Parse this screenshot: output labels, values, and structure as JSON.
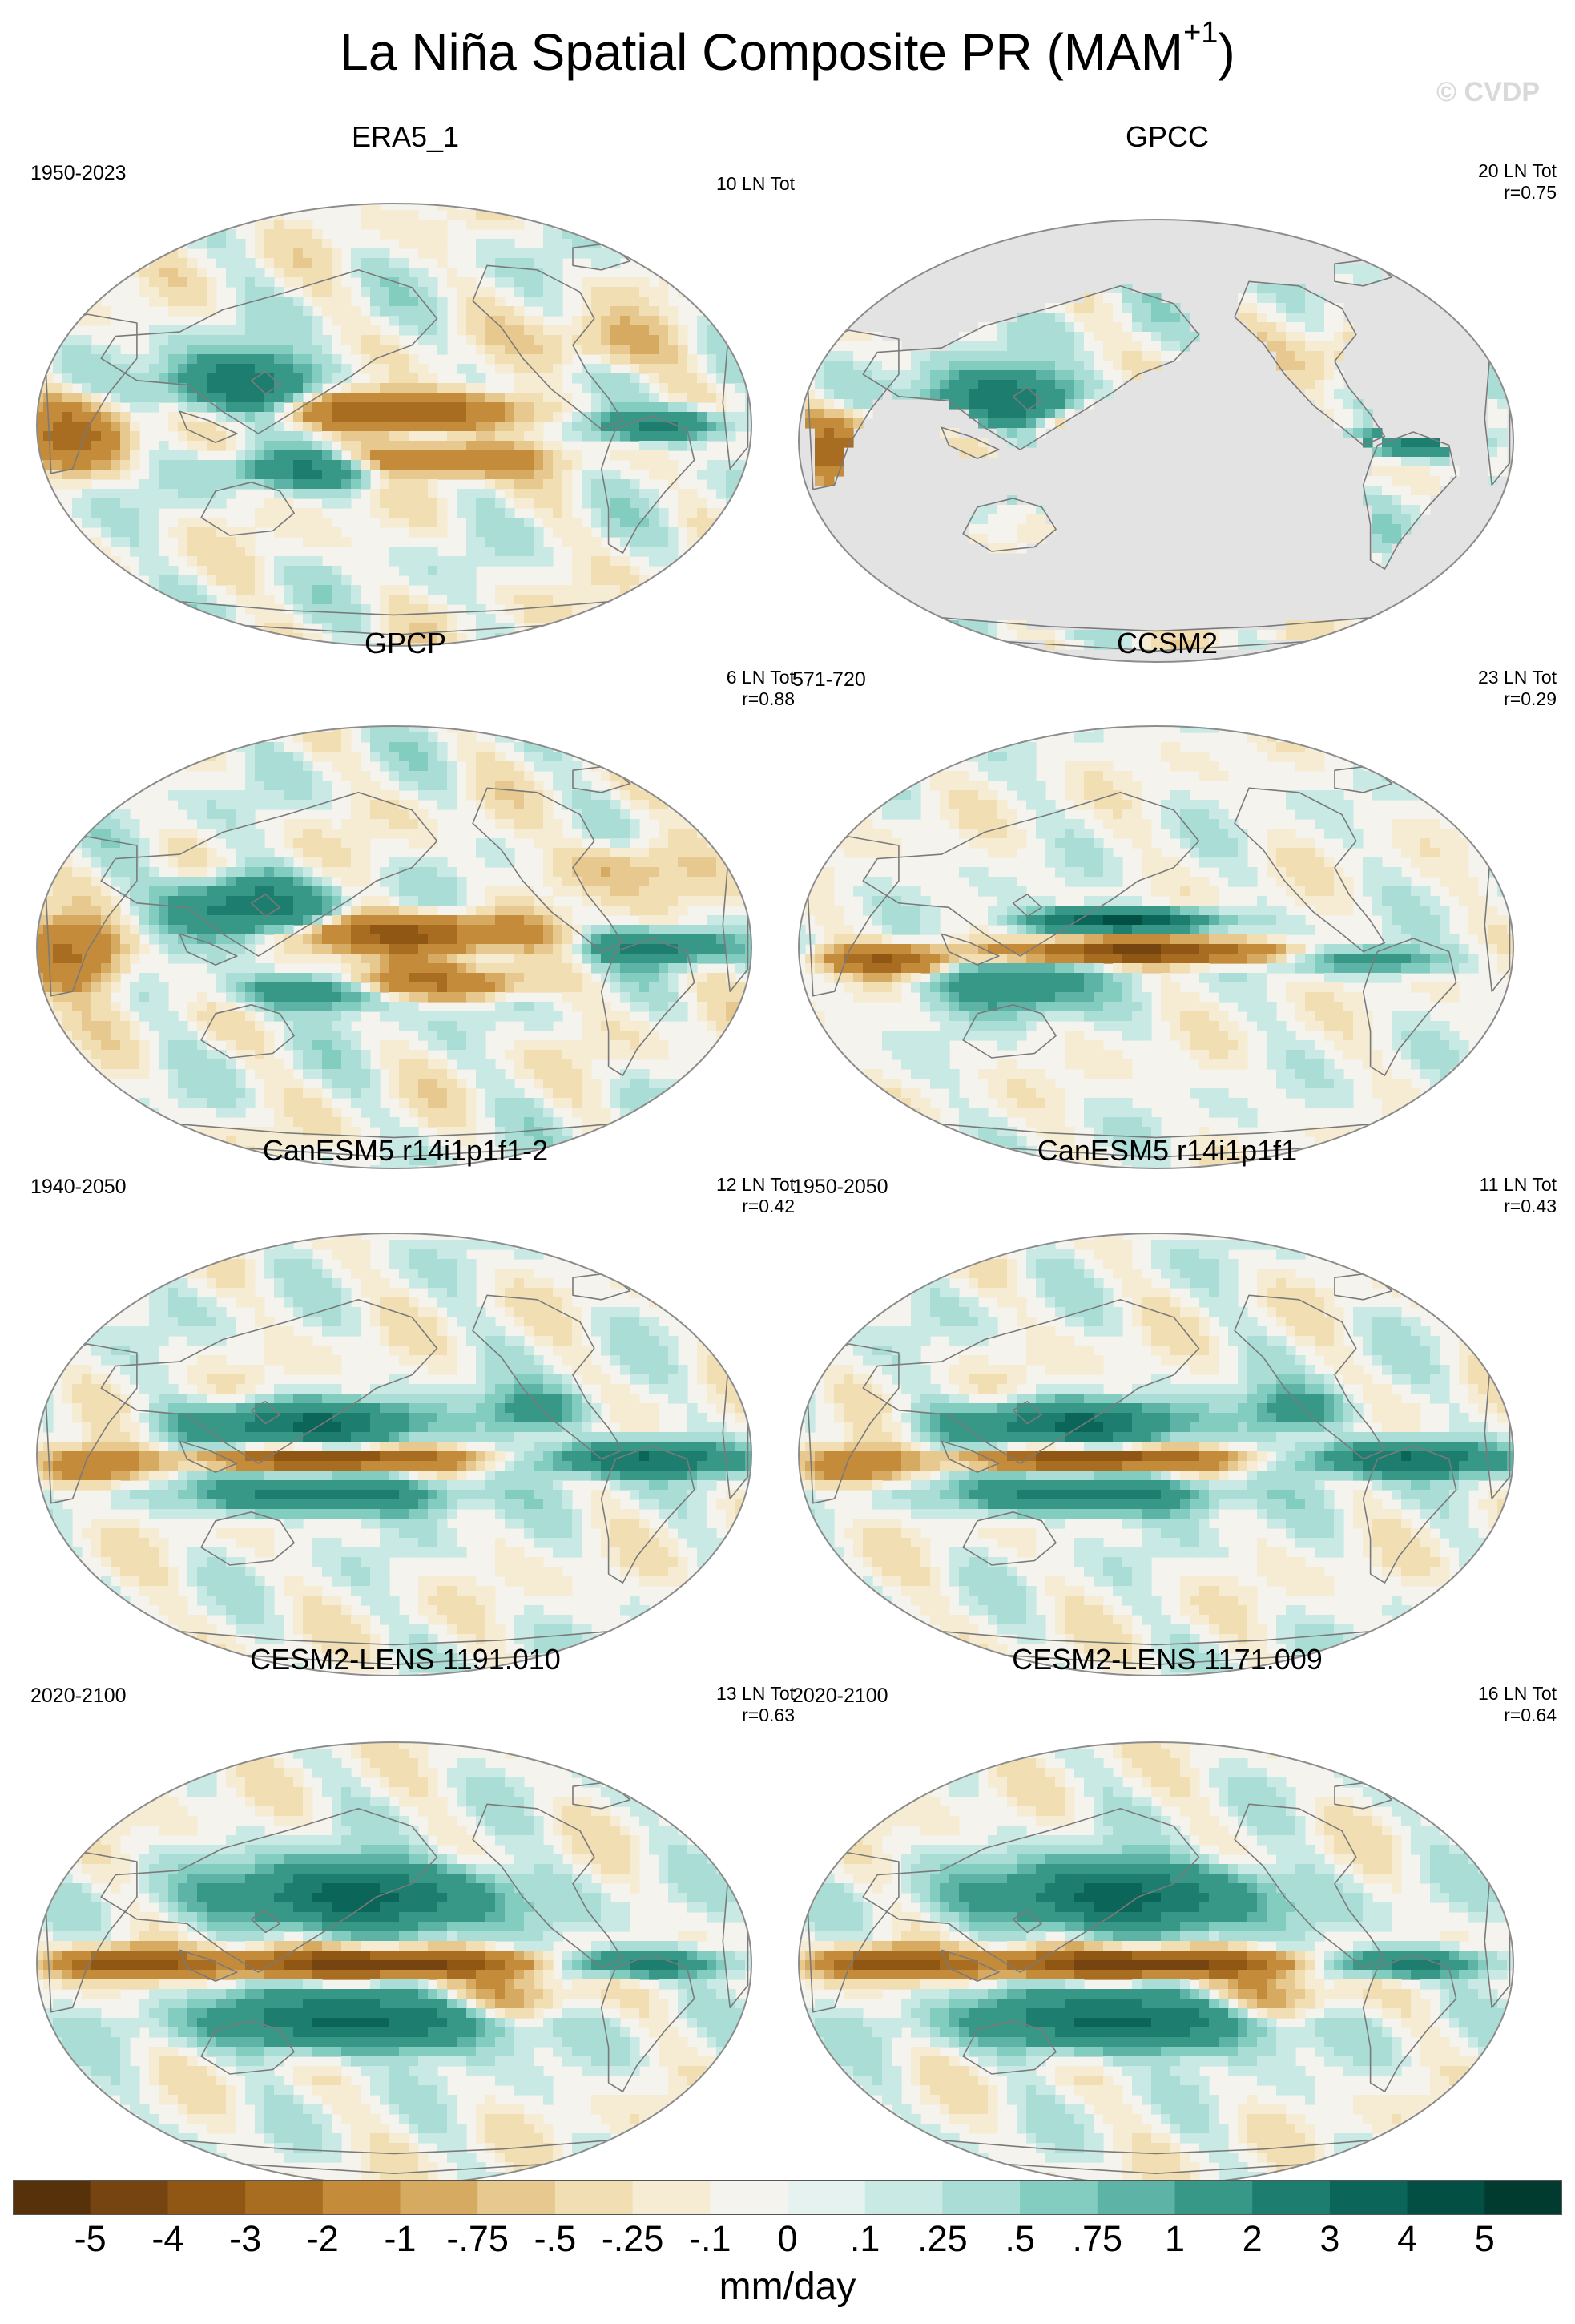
{
  "title": "La Niña Spatial Composite PR (MAM",
  "title_sup": "+1",
  "title_close": ")",
  "watermark": "© CVDP",
  "chart_data": {
    "type": "heatmap",
    "projection": "global map, centered on the Pacific",
    "colors": {
      "land_outline": "#7a7a7a",
      "no_data": "#e3e3e3",
      "map_border": "#8c8c8c"
    },
    "panels": [
      {
        "title": "ERA5_1",
        "period": "1950-2023",
        "stats": [
          "10 LN Tot"
        ],
        "pattern": "era5",
        "mask_ocean": false
      },
      {
        "title": "GPCC",
        "period": "",
        "stats": [
          "20 LN Tot",
          "r=0.75"
        ],
        "pattern": "era5",
        "mask_ocean": true
      },
      {
        "title": "GPCP",
        "period": "",
        "stats": [
          "6 LN Tot",
          "r=0.88"
        ],
        "pattern": "gpcp",
        "mask_ocean": false
      },
      {
        "title": "CCSM2",
        "period": "571-720",
        "stats": [
          "23 LN Tot",
          "r=0.29"
        ],
        "pattern": "ccsm",
        "mask_ocean": false
      },
      {
        "title": "CanESM5 r14i1p1f1-2",
        "period": "1940-2050",
        "stats": [
          "12 LN Tot",
          "r=0.42"
        ],
        "pattern": "canesm",
        "mask_ocean": false
      },
      {
        "title": "CanESM5 r14i1p1f1",
        "period": "1950-2050",
        "stats": [
          "11 LN Tot",
          "r=0.43"
        ],
        "pattern": "canesm",
        "mask_ocean": false
      },
      {
        "title": "CESM2-LENS 1191.010",
        "period": "2020-2100",
        "stats": [
          "13 LN Tot",
          "r=0.63"
        ],
        "pattern": "cesm",
        "mask_ocean": false
      },
      {
        "title": "CESM2-LENS 1171.009",
        "period": "2020-2100",
        "stats": [
          "16 LN Tot",
          "r=0.64"
        ],
        "pattern": "cesm",
        "mask_ocean": false
      }
    ],
    "colorbar": {
      "units": "mm/day",
      "tick_labels": [
        "-5",
        "-4",
        "-3",
        "-2",
        "-1",
        "-.75",
        "-.5",
        "-.25",
        "-.1",
        "0",
        ".1",
        ".25",
        ".5",
        ".75",
        "1",
        "2",
        "3",
        "4",
        "5"
      ],
      "colors": [
        "#573109",
        "#754410",
        "#8f5614",
        "#a86d21",
        "#c48b3a",
        "#d6ab61",
        "#e7c98f",
        "#f1deb3",
        "#f6ecd4",
        "#f5f3ed",
        "#e6f2f0",
        "#c9e9e4",
        "#a9ddd5",
        "#83cdc0",
        "#5db4a6",
        "#379888",
        "#1d7e70",
        "#0b6558",
        "#034f43",
        "#013b30"
      ]
    }
  }
}
